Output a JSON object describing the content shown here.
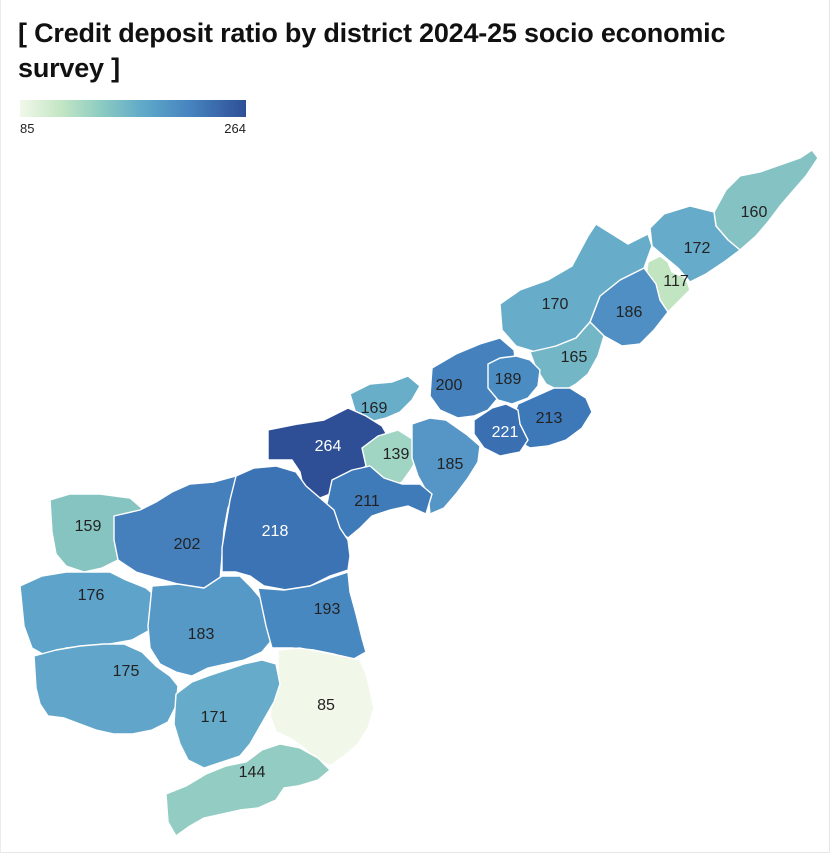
{
  "title": "[ Credit deposit ratio by district 2024-25 socio economic survey ]",
  "legend": {
    "min": "85",
    "max": "264",
    "color_low": "#f1f8ea",
    "color_high": "#2e4f96"
  },
  "districts": [
    {
      "label": "160",
      "value": 160,
      "color": "#84c2c3"
    },
    {
      "label": "172",
      "value": 172,
      "color": "#66abc9"
    },
    {
      "label": "117",
      "value": 117,
      "color": "#c2e5c1"
    },
    {
      "label": "186",
      "value": 186,
      "color": "#4f8fc4"
    },
    {
      "label": "170",
      "value": 170,
      "color": "#67adc9"
    },
    {
      "label": "165",
      "value": 165,
      "color": "#73b6c6"
    },
    {
      "label": "200",
      "value": 200,
      "color": "#4582bd"
    },
    {
      "label": "189",
      "value": 189,
      "color": "#4b8cc2"
    },
    {
      "label": "213",
      "value": 213,
      "color": "#3d78b8"
    },
    {
      "label": "221",
      "value": 221,
      "color": "#3a70b2"
    },
    {
      "label": "169",
      "value": 169,
      "color": "#68aec8"
    },
    {
      "label": "264",
      "value": 264,
      "color": "#2e4f96"
    },
    {
      "label": "139",
      "value": 139,
      "color": "#a0d5c4"
    },
    {
      "label": "185",
      "value": 185,
      "color": "#5596c6"
    },
    {
      "label": "211",
      "value": 211,
      "color": "#3f7bb9"
    },
    {
      "label": "159",
      "value": 159,
      "color": "#86c4c1"
    },
    {
      "label": "202",
      "value": 202,
      "color": "#4580bd"
    },
    {
      "label": "218",
      "value": 218,
      "color": "#3b73b4"
    },
    {
      "label": "176",
      "value": 176,
      "color": "#5ea3ca"
    },
    {
      "label": "183",
      "value": 183,
      "color": "#5699c7"
    },
    {
      "label": "193",
      "value": 193,
      "color": "#4888c1"
    },
    {
      "label": "175",
      "value": 175,
      "color": "#61a6ca"
    },
    {
      "label": "85",
      "value": 85,
      "color": "#f1f8ea"
    },
    {
      "label": "171",
      "value": 171,
      "color": "#66abc9"
    },
    {
      "label": "144",
      "value": 144,
      "color": "#93ccc2"
    }
  ]
}
